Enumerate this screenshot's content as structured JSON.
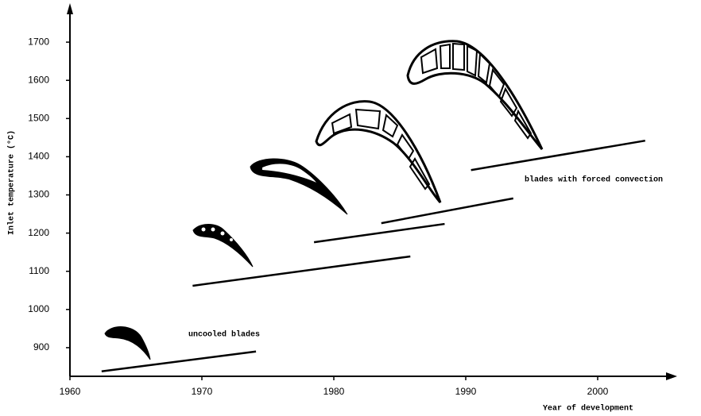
{
  "chart_data": {
    "type": "line",
    "x_label": "Year of development",
    "y_label": "Inlet temperature (°C)",
    "annotations": [
      "uncooled blades",
      "blades with forced convection"
    ],
    "xlim": [
      1960,
      2006
    ],
    "ylim": [
      825,
      1790
    ],
    "xticks": [
      1960,
      1970,
      1980,
      1990,
      2000
    ],
    "yticks": [
      900,
      1000,
      1100,
      1200,
      1300,
      1400,
      1500,
      1600,
      1700
    ],
    "series": [
      {
        "color": "#000000",
        "x": [
          1962.4,
          1974.1
        ],
        "values": [
          838,
          890
        ]
      },
      {
        "color": "#000000",
        "x": [
          1969.3,
          1985.8
        ],
        "values": [
          1062,
          1139
        ]
      },
      {
        "color": "#000000",
        "x": [
          1978.5,
          1988.4
        ],
        "values": [
          1176,
          1224
        ]
      },
      {
        "color": "#000000",
        "x": [
          1983.6,
          1993.6
        ],
        "values": [
          1226,
          1291
        ]
      },
      {
        "color": "#000000",
        "x": [
          1990.4,
          2003.6
        ],
        "values": [
          1365,
          1442
        ]
      }
    ]
  }
}
